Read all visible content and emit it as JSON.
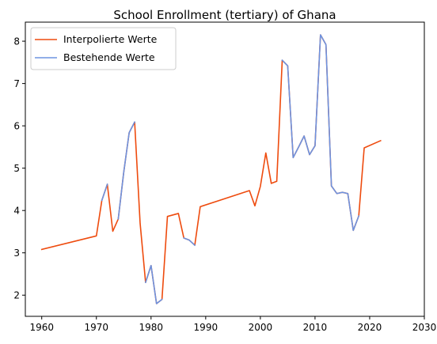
{
  "chart_data": {
    "type": "line",
    "title": "School Enrollment (tertiary) of Ghana",
    "xlabel": "",
    "ylabel": "",
    "xlim": [
      1957,
      2030
    ],
    "ylim": [
      1.5,
      8.45
    ],
    "x_ticks": [
      1960,
      1970,
      1980,
      1990,
      2000,
      2010,
      2020,
      2030
    ],
    "y_ticks": [
      2,
      3,
      4,
      5,
      6,
      7,
      8
    ],
    "grid": false,
    "legend_position": "top-left",
    "series": [
      {
        "name": "Interpolierte Werte",
        "color": "#ee4b0e",
        "x": [
          1960,
          1970,
          1971,
          1972,
          1973,
          1974,
          1975,
          1976,
          1977,
          1978,
          1979,
          1980,
          1981,
          1982,
          1983,
          1985,
          1986,
          1987,
          1988,
          1989,
          1998,
          1999,
          2000,
          2001,
          2002,
          2003,
          2004,
          2005,
          2006,
          2007,
          2008,
          2009,
          2010,
          2011,
          2012,
          2013,
          2014,
          2015,
          2016,
          2017,
          2018,
          2019,
          2022
        ],
        "y": [
          3.08,
          3.4,
          4.24,
          4.62,
          3.51,
          3.8,
          4.9,
          5.84,
          6.09,
          3.7,
          2.3,
          2.7,
          1.8,
          1.9,
          3.86,
          3.93,
          3.35,
          3.3,
          3.18,
          4.09,
          4.47,
          4.11,
          4.57,
          5.36,
          4.64,
          4.69,
          7.55,
          7.42,
          5.25,
          5.5,
          5.76,
          5.32,
          5.53,
          8.15,
          7.92,
          4.58,
          4.4,
          4.43,
          4.4,
          3.53,
          3.87,
          5.48,
          5.65
        ]
      },
      {
        "name": "Bestehende Werte",
        "color": "#6d93e0",
        "segments": [
          {
            "x": [
              1971,
              1972
            ],
            "y": [
              4.24,
              4.62
            ]
          },
          {
            "x": [
              1974,
              1975,
              1976,
              1977
            ],
            "y": [
              3.8,
              4.9,
              5.84,
              6.09
            ]
          },
          {
            "x": [
              1979,
              1980,
              1981,
              1982
            ],
            "y": [
              2.3,
              2.7,
              1.8,
              1.9
            ]
          },
          {
            "x": [
              1986,
              1987,
              1988
            ],
            "y": [
              3.35,
              3.3,
              3.18
            ]
          },
          {
            "x": [
              2004,
              2005,
              2006,
              2007,
              2008,
              2009,
              2010,
              2011,
              2012,
              2013,
              2014,
              2015,
              2016,
              2017,
              2018
            ],
            "y": [
              7.55,
              7.42,
              5.25,
              5.5,
              5.76,
              5.32,
              5.53,
              8.15,
              7.92,
              4.58,
              4.4,
              4.43,
              4.4,
              3.53,
              3.87
            ]
          }
        ]
      }
    ]
  }
}
